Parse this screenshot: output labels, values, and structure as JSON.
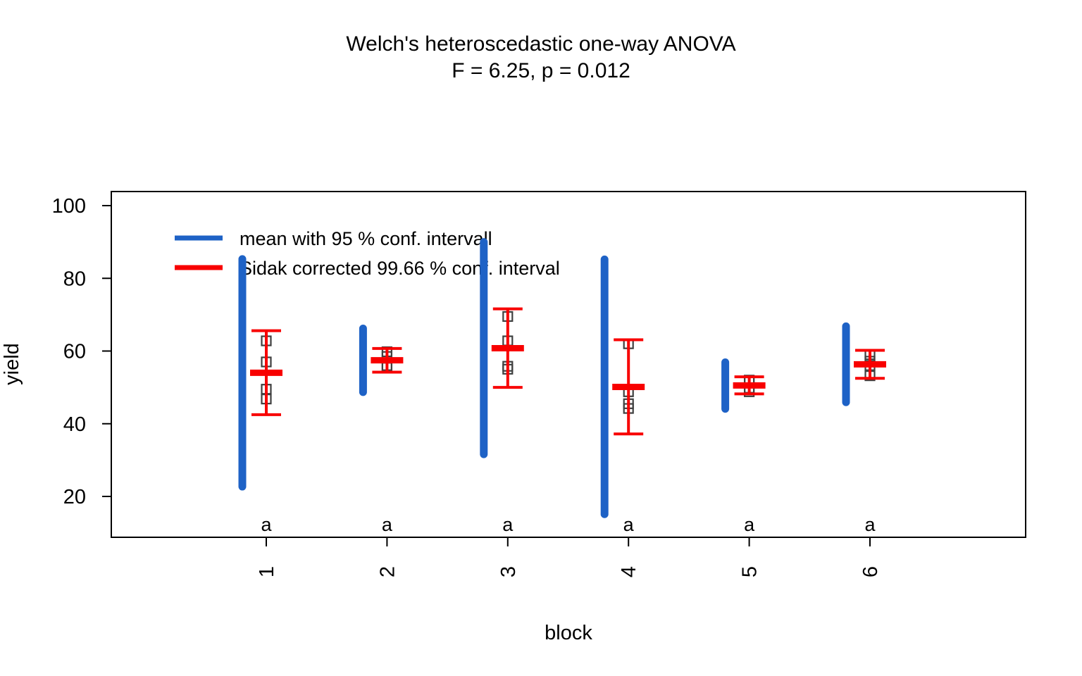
{
  "chart_data": {
    "type": "scatter",
    "title": "Welch's heteroscedastic one-way ANOVA",
    "subtitle": "F = 6.25, p = 0.012",
    "xlabel": "block",
    "ylabel": "yield",
    "categories": [
      "1",
      "2",
      "3",
      "4",
      "5",
      "6"
    ],
    "yticks": [
      20,
      40,
      60,
      80,
      100
    ],
    "ylim": [
      8.8,
      103.9
    ],
    "grid": false,
    "legend": {
      "position": "top-left-inside",
      "items": [
        {
          "label": "mean with 95 % conf. intervall",
          "color": "#1E62C6"
        },
        {
          "label": "Sidak corrected 99.66 % conf. interval",
          "color": "#F80000"
        }
      ]
    },
    "group_letters": [
      "a",
      "a",
      "a",
      "a",
      "a",
      "a"
    ],
    "series": [
      {
        "name": "group means",
        "values": [
          54.03,
          57.45,
          60.78,
          50.13,
          50.53,
          56.35
        ]
      },
      {
        "name": "wide interval (blue bars)",
        "ranges": [
          [
            22.7,
            85.3
          ],
          [
            48.7,
            66.2
          ],
          [
            31.6,
            90.0
          ],
          [
            15.1,
            85.2
          ],
          [
            44.1,
            56.9
          ],
          [
            45.9,
            66.8
          ]
        ]
      },
      {
        "name": "capped interval (red error bars)",
        "ranges": [
          [
            42.5,
            65.6
          ],
          [
            54.2,
            60.7
          ],
          [
            50.0,
            71.6
          ],
          [
            37.2,
            63.1
          ],
          [
            48.2,
            52.9
          ],
          [
            52.5,
            60.2
          ]
        ]
      },
      {
        "name": "observations (open squares)",
        "points": [
          [
            49.5,
            62.8,
            46.8,
            57.0
          ],
          [
            59.8,
            58.5,
            55.5,
            56.0
          ],
          [
            62.8,
            55.8,
            69.5,
            55.0
          ],
          [
            62.0,
            48.8,
            45.5,
            44.2
          ],
          [
            52.0,
            51.5,
            49.8,
            48.8
          ],
          [
            57.2,
            59.0,
            53.2,
            56.0
          ]
        ]
      }
    ],
    "colors": {
      "mean_ci": "#1E62C6",
      "sidak_ci": "#F80000",
      "points": "#404040",
      "letters": "#147814",
      "axis": "#000000",
      "background": "#FFFFFF"
    }
  }
}
